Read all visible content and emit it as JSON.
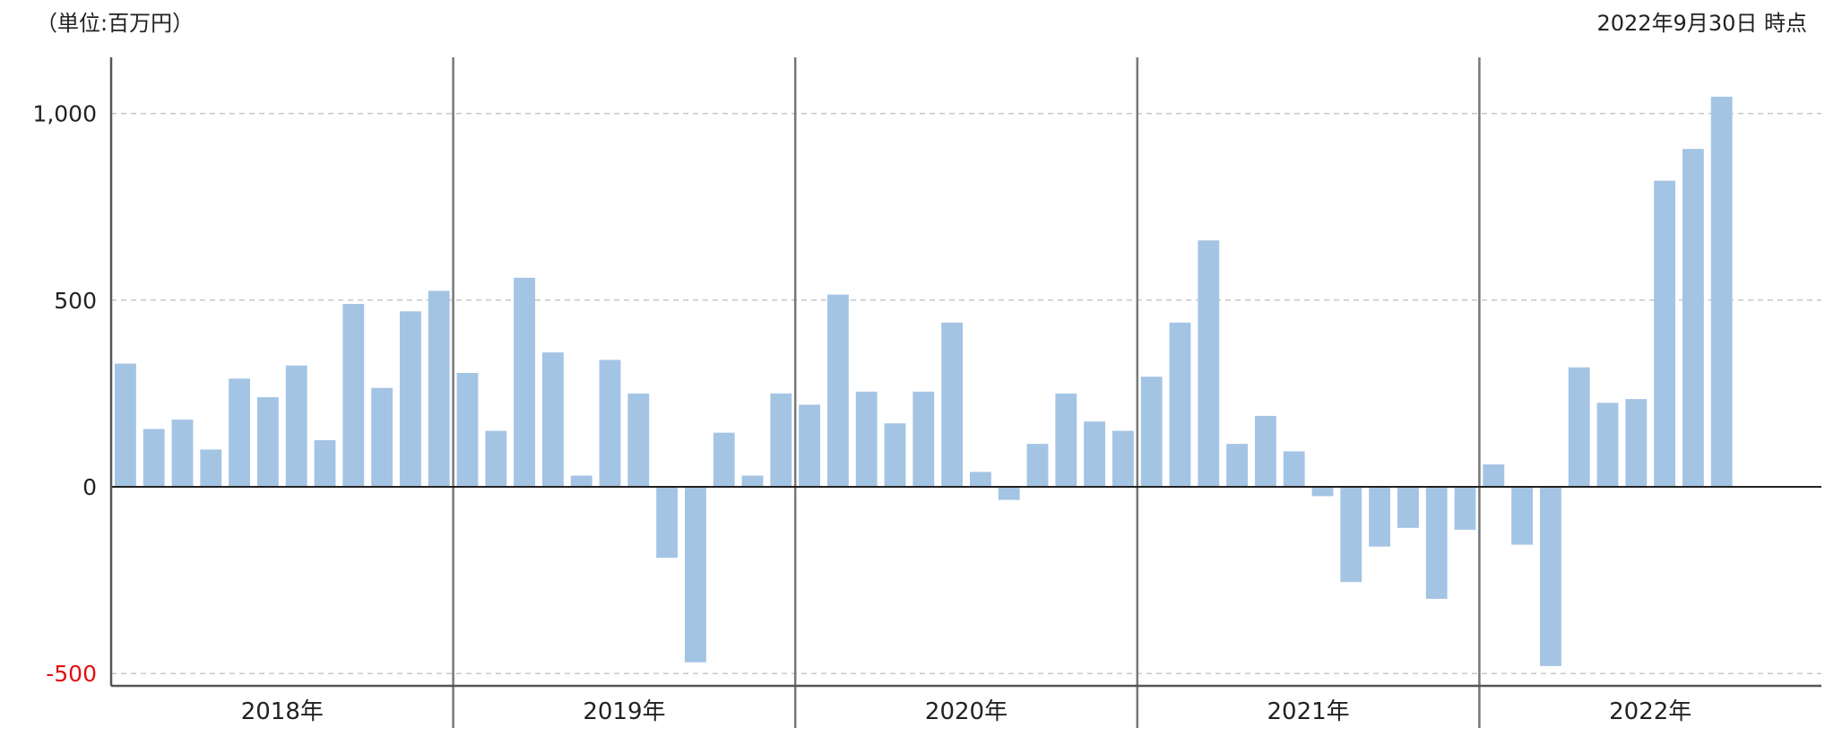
{
  "unit_label": "（単位:百万円）",
  "as_of_label": "2022年9月30日 時点",
  "colors": {
    "bar": "#a4c4e4",
    "negative_tick": "#e01010",
    "axis": "#555555",
    "grid": "#c8c8c8",
    "zero_line": "#222222"
  },
  "chart_data": {
    "type": "bar",
    "title": "",
    "xlabel": "",
    "ylabel": "",
    "ylim": [
      -520,
      1100
    ],
    "grid": true,
    "yticks": [
      {
        "value": -500,
        "label": "-500"
      },
      {
        "value": 0,
        "label": "0"
      },
      {
        "value": 500,
        "label": "500"
      },
      {
        "value": 1000,
        "label": "1,000"
      }
    ],
    "groups": [
      {
        "label": "2018年",
        "values": [
          330,
          155,
          180,
          100,
          290,
          240,
          325,
          125,
          490,
          265,
          470,
          525
        ]
      },
      {
        "label": "2019年",
        "values": [
          305,
          150,
          560,
          360,
          30,
          340,
          250,
          -190,
          -470,
          145,
          30,
          250
        ]
      },
      {
        "label": "2020年",
        "values": [
          220,
          515,
          255,
          170,
          255,
          440,
          40,
          -35,
          115,
          250,
          175,
          150
        ]
      },
      {
        "label": "2021年",
        "values": [
          295,
          440,
          660,
          115,
          190,
          95,
          -25,
          -255,
          -160,
          -110,
          -300,
          -115
        ]
      },
      {
        "label": "2022年",
        "values": [
          60,
          -155,
          -480,
          320,
          225,
          235,
          820,
          905,
          1045
        ]
      }
    ]
  }
}
